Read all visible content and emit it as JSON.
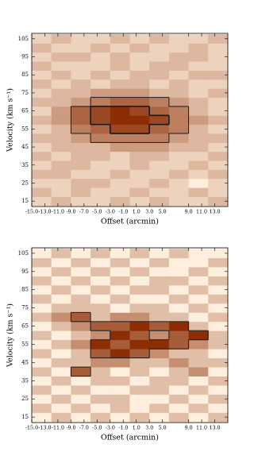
{
  "chart_data": [
    {
      "type": "heatmap",
      "xlabel": "Offset (arcmin)",
      "ylabel": "Velocity (km s⁻¹)",
      "x": [
        -13.5,
        -10.5,
        -7.5,
        -4.5,
        -1.5,
        1.5,
        4.5,
        7.5,
        10.5,
        13.5
      ],
      "y": [
        15,
        20,
        25,
        30,
        35,
        40,
        45,
        50,
        55,
        60,
        65,
        70,
        75,
        80,
        85,
        90,
        95,
        100,
        105
      ],
      "z": [
        [
          2,
          3,
          2,
          2,
          3,
          2,
          3,
          2,
          2,
          3
        ],
        [
          3,
          2,
          3,
          2,
          2,
          3,
          2,
          2,
          3,
          2
        ],
        [
          2,
          2,
          3,
          3,
          2,
          2,
          3,
          2,
          1,
          2
        ],
        [
          3,
          3,
          2,
          2,
          3,
          2,
          2,
          3,
          2,
          3
        ],
        [
          2,
          3,
          3,
          2,
          2,
          3,
          2,
          2,
          3,
          2
        ],
        [
          3,
          2,
          3,
          3,
          2,
          3,
          3,
          2,
          2,
          3
        ],
        [
          2,
          3,
          3,
          3,
          4,
          4,
          4,
          3,
          3,
          2
        ],
        [
          3,
          3,
          4,
          5,
          5,
          5,
          5,
          4,
          3,
          3
        ],
        [
          2,
          3,
          5,
          6,
          7,
          7,
          6,
          5,
          3,
          2
        ],
        [
          3,
          4,
          6,
          7,
          8,
          8,
          7,
          5,
          4,
          3
        ],
        [
          2,
          4,
          6,
          7,
          8,
          7,
          6,
          5,
          3,
          2
        ],
        [
          3,
          3,
          4,
          5,
          6,
          6,
          5,
          4,
          3,
          2
        ],
        [
          2,
          3,
          3,
          4,
          4,
          4,
          3,
          3,
          2,
          3
        ],
        [
          3,
          2,
          3,
          2,
          3,
          3,
          2,
          3,
          2,
          2
        ],
        [
          2,
          3,
          2,
          3,
          2,
          3,
          3,
          2,
          3,
          3
        ],
        [
          3,
          2,
          2,
          2,
          3,
          2,
          3,
          3,
          2,
          2
        ],
        [
          2,
          3,
          3,
          2,
          3,
          2,
          2,
          3,
          3,
          2
        ],
        [
          3,
          2,
          2,
          3,
          2,
          3,
          2,
          2,
          3,
          2
        ],
        [
          2,
          3,
          2,
          2,
          3,
          2,
          3,
          2,
          2,
          3
        ]
      ],
      "colormap": [
        "#fdeedd",
        "#8c2d04"
      ],
      "contour_levels": [
        5,
        7
      ],
      "contour_color": "#1a1a1a",
      "xlim": [
        -15,
        15
      ],
      "ylim": [
        12,
        108
      ],
      "xticks": [
        {
          "value": -15,
          "label": "-15.0"
        },
        {
          "value": -13,
          "label": "-13.0"
        },
        {
          "value": -11,
          "label": "-11.0"
        },
        {
          "value": -9,
          "label": "-9.0"
        },
        {
          "value": -7,
          "label": "-7.0"
        },
        {
          "value": -5,
          "label": "-5.0"
        },
        {
          "value": -3,
          "label": "-3.0"
        },
        {
          "value": -1,
          "label": "-1.0"
        },
        {
          "value": 1,
          "label": "1.0"
        },
        {
          "value": 3,
          "label": "3.0"
        },
        {
          "value": 5,
          "label": "5.0"
        },
        {
          "value": 9,
          "label": "9.0"
        },
        {
          "value": 11,
          "label": "11.0"
        },
        {
          "value": 13,
          "label": "13.0"
        }
      ],
      "yticks": [
        15,
        25,
        35,
        45,
        55,
        65,
        75,
        85,
        95,
        105
      ]
    },
    {
      "type": "heatmap",
      "xlabel": "Offset (arcmin)",
      "ylabel": "Velocity (km s⁻¹)",
      "x": [
        -13.5,
        -10.5,
        -7.5,
        -4.5,
        -1.5,
        1.5,
        4.5,
        7.5,
        10.5,
        13.5
      ],
      "y": [
        15,
        20,
        25,
        30,
        35,
        40,
        45,
        50,
        55,
        60,
        65,
        70,
        75,
        80,
        85,
        90,
        95,
        100,
        105
      ],
      "z": [
        [
          2,
          3,
          2,
          3,
          2,
          3,
          2,
          3,
          2,
          3
        ],
        [
          3,
          2,
          3,
          2,
          3,
          2,
          3,
          2,
          3,
          2
        ],
        [
          2,
          3,
          2,
          3,
          3,
          2,
          2,
          3,
          2,
          3
        ],
        [
          3,
          2,
          3,
          2,
          2,
          3,
          3,
          2,
          3,
          2
        ],
        [
          2,
          3,
          2,
          3,
          3,
          2,
          3,
          3,
          2,
          3
        ],
        [
          3,
          2,
          5,
          3,
          2,
          3,
          2,
          3,
          4,
          2
        ],
        [
          2,
          3,
          3,
          4,
          4,
          3,
          3,
          4,
          3,
          3
        ],
        [
          3,
          2,
          3,
          5,
          6,
          5,
          4,
          3,
          3,
          2
        ],
        [
          2,
          3,
          4,
          6,
          5,
          6,
          6,
          5,
          4,
          3
        ],
        [
          3,
          2,
          3,
          4,
          6,
          5,
          4,
          5,
          6,
          3
        ],
        [
          2,
          3,
          4,
          5,
          5,
          6,
          5,
          6,
          3,
          2
        ],
        [
          3,
          4,
          5,
          3,
          4,
          4,
          3,
          3,
          2,
          3
        ],
        [
          2,
          3,
          3,
          3,
          2,
          3,
          3,
          2,
          3,
          2
        ],
        [
          3,
          2,
          3,
          2,
          3,
          2,
          2,
          3,
          2,
          3
        ],
        [
          2,
          3,
          2,
          3,
          2,
          3,
          3,
          2,
          3,
          2
        ],
        [
          3,
          2,
          3,
          2,
          3,
          2,
          3,
          3,
          2,
          3
        ],
        [
          2,
          3,
          2,
          3,
          2,
          3,
          2,
          2,
          3,
          2
        ],
        [
          3,
          2,
          3,
          2,
          3,
          2,
          3,
          2,
          2,
          3
        ],
        [
          2,
          3,
          2,
          3,
          2,
          3,
          2,
          3,
          2,
          2
        ]
      ],
      "colormap": [
        "#fdeedd",
        "#8c2d04"
      ],
      "contour_levels": [
        5
      ],
      "contour_color": "#1a1a1a",
      "xlim": [
        -15,
        15
      ],
      "ylim": [
        12,
        108
      ],
      "xticks": [
        {
          "value": -15,
          "label": "-15.0"
        },
        {
          "value": -13,
          "label": "-13.0"
        },
        {
          "value": -11,
          "label": "-11.0"
        },
        {
          "value": -9,
          "label": "-9.0"
        },
        {
          "value": -7,
          "label": "-7.0"
        },
        {
          "value": -5,
          "label": "-5.0"
        },
        {
          "value": -3,
          "label": "-3.0"
        },
        {
          "value": -1,
          "label": "-1.0"
        },
        {
          "value": 1,
          "label": "1.0"
        },
        {
          "value": 3,
          "label": "3.0"
        },
        {
          "value": 5,
          "label": "5.0"
        },
        {
          "value": 9,
          "label": "9.0"
        },
        {
          "value": 11,
          "label": "11.0"
        },
        {
          "value": 13,
          "label": "13.0"
        }
      ],
      "yticks": [
        15,
        25,
        35,
        45,
        55,
        65,
        75,
        85,
        95,
        105
      ]
    }
  ]
}
